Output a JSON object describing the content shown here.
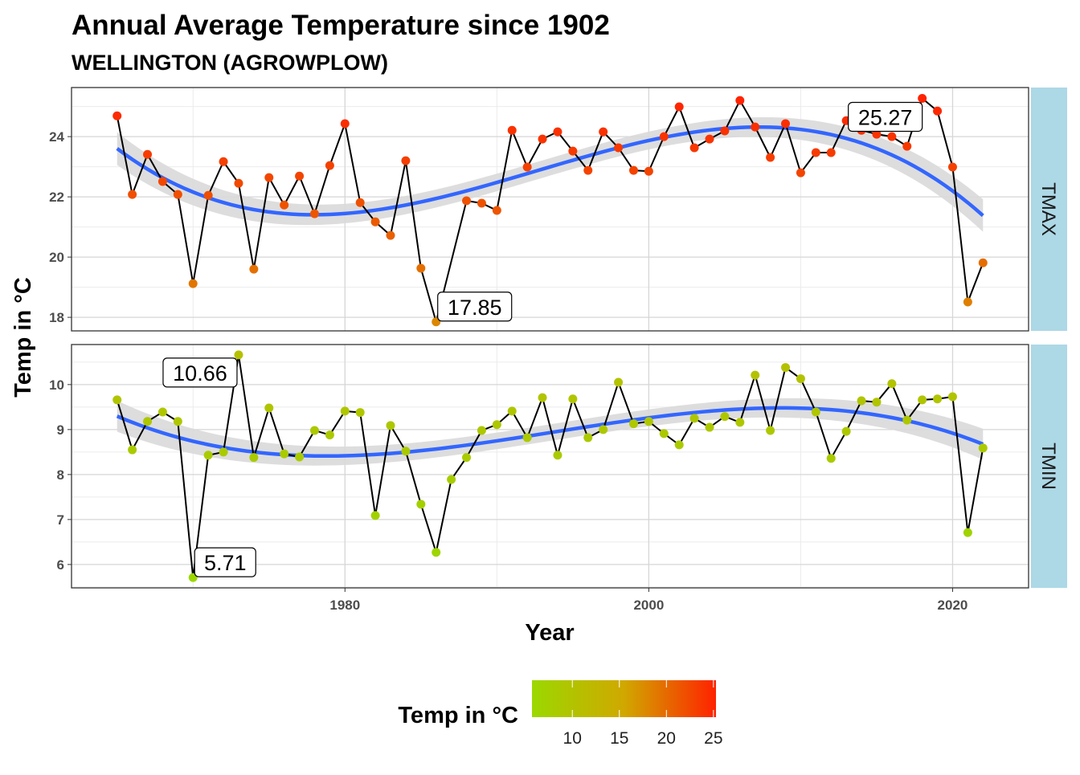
{
  "chart_data": {
    "type": "line",
    "title": "Annual Average Temperature since 1902",
    "subtitle": "WELLINGTON (AGROWPLOW)",
    "xlabel": "Year",
    "ylabel": "Temp in °C",
    "xlim": [
      1962,
      2025
    ],
    "x_ticks": [
      1980,
      2000,
      2020
    ],
    "grid": true,
    "smoother": "loess trend with confidence band",
    "legend": {
      "title": "Temp in °C",
      "placement": "bottom",
      "ticks": [
        10,
        15,
        20,
        25
      ],
      "range": [
        5.71,
        25.27
      ],
      "colors": [
        "#9bd800",
        "#d0a800",
        "#ff2200"
      ]
    },
    "panels": [
      {
        "name": "TMAX",
        "ylim": [
          17.55,
          25.63
        ],
        "y_ticks": [
          18,
          20,
          22,
          24
        ],
        "x": [
          1965,
          1966,
          1967,
          1968,
          1969,
          1970,
          1971,
          1972,
          1973,
          1974,
          1975,
          1976,
          1977,
          1978,
          1979,
          1980,
          1981,
          1982,
          1983,
          1984,
          1985,
          1986,
          1988,
          1989,
          1990,
          1991,
          1992,
          1993,
          1994,
          1995,
          1996,
          1997,
          1998,
          1999,
          2000,
          2001,
          2002,
          2003,
          2004,
          2005,
          2006,
          2007,
          2008,
          2009,
          2010,
          2011,
          2012,
          2013,
          2014,
          2015,
          2016,
          2017,
          2018,
          2019,
          2020,
          2021,
          2022
        ],
        "values": [
          24.69,
          22.08,
          23.41,
          22.51,
          22.08,
          19.12,
          22.05,
          23.17,
          22.45,
          19.6,
          22.64,
          21.73,
          22.69,
          21.44,
          23.04,
          24.43,
          21.81,
          21.17,
          20.72,
          23.2,
          19.63,
          17.85,
          21.87,
          21.79,
          21.55,
          24.21,
          22.99,
          23.92,
          24.16,
          23.52,
          22.88,
          24.16,
          23.63,
          22.88,
          22.85,
          24.0,
          24.99,
          23.63,
          23.92,
          24.19,
          25.2,
          24.32,
          23.31,
          24.43,
          22.8,
          23.47,
          23.47,
          24.53,
          24.21,
          24.08,
          24.0,
          23.68,
          25.27,
          24.85,
          22.99,
          18.51,
          19.81
        ],
        "annotations": [
          {
            "year": 1986,
            "text": "17.85"
          },
          {
            "year": 2018,
            "text": "25.27"
          }
        ]
      },
      {
        "name": "TMIN",
        "ylim": [
          5.48,
          10.89
        ],
        "y_ticks": [
          6,
          7,
          8,
          9,
          10
        ],
        "x": [
          1965,
          1966,
          1967,
          1968,
          1969,
          1970,
          1971,
          1972,
          1973,
          1974,
          1975,
          1976,
          1977,
          1978,
          1979,
          1980,
          1981,
          1982,
          1983,
          1984,
          1985,
          1986,
          1987,
          1988,
          1989,
          1990,
          1991,
          1992,
          1993,
          1994,
          1995,
          1996,
          1997,
          1998,
          1999,
          2000,
          2001,
          2002,
          2003,
          2004,
          2005,
          2006,
          2007,
          2008,
          2009,
          2010,
          2011,
          2012,
          2013,
          2014,
          2015,
          2016,
          2017,
          2018,
          2019,
          2020,
          2021,
          2022
        ],
        "values": [
          9.66,
          8.55,
          9.18,
          9.39,
          9.18,
          5.71,
          8.43,
          8.5,
          10.66,
          8.38,
          9.48,
          8.46,
          8.39,
          8.98,
          8.88,
          9.41,
          9.38,
          7.09,
          9.09,
          8.52,
          7.34,
          6.27,
          7.89,
          8.38,
          8.98,
          9.11,
          9.41,
          8.82,
          9.71,
          8.43,
          9.68,
          8.82,
          9.0,
          10.05,
          9.13,
          9.18,
          8.91,
          8.66,
          9.25,
          9.05,
          9.29,
          9.16,
          10.21,
          8.98,
          10.38,
          10.13,
          9.39,
          8.36,
          8.96,
          9.64,
          9.61,
          10.02,
          9.21,
          9.66,
          9.68,
          9.73,
          6.71,
          8.59
        ],
        "annotations": [
          {
            "year": 1973,
            "text": "10.66"
          },
          {
            "year": 1970,
            "text": "5.71"
          }
        ]
      }
    ],
    "colors": {
      "smooth": "#3366ff",
      "band": "#d9d9d9",
      "strip": "#add8e6",
      "line": "#000000"
    }
  }
}
